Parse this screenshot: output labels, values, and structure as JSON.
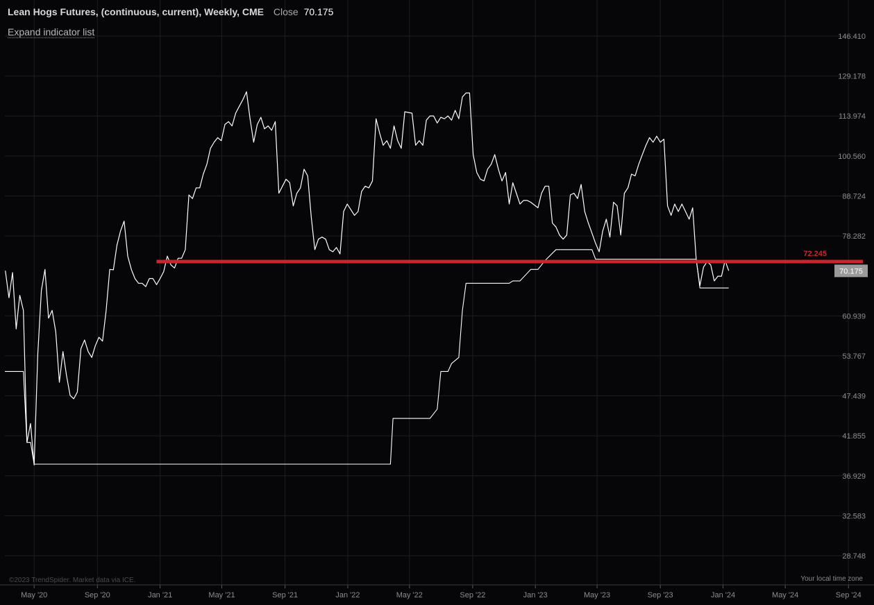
{
  "header": {
    "symbol": "Lean Hogs Futures, (continuous, current), Weekly, CME",
    "close_label": "Close",
    "close_value": "70.175"
  },
  "expand_label": "Expand indicator list",
  "copyright": "©2023 TrendSpider. Market data via ICE.",
  "timezone_label": "Your local time zone",
  "colors": {
    "background": "#060608",
    "price": "#ffffff",
    "level": "#c8252d",
    "grid": "#1d1d22"
  },
  "chart_data": {
    "type": "line",
    "log_scale": true,
    "grid": true,
    "y_ticks": [
      "146.410",
      "129.178",
      "113.974",
      "100.560",
      "88.724",
      "78.282",
      "60.939",
      "53.767",
      "47.439",
      "41.855",
      "36.929",
      "32.583",
      "28.748"
    ],
    "x_ticks": [
      {
        "label": "May '20",
        "date": "2020-05-01"
      },
      {
        "label": "Sep '20",
        "date": "2020-09-01"
      },
      {
        "label": "Jan '21",
        "date": "2021-01-01"
      },
      {
        "label": "May '21",
        "date": "2021-05-01"
      },
      {
        "label": "Sep '21",
        "date": "2021-09-01"
      },
      {
        "label": "Jan '22",
        "date": "2022-01-01"
      },
      {
        "label": "May '22",
        "date": "2022-05-01"
      },
      {
        "label": "Sep '22",
        "date": "2022-09-01"
      },
      {
        "label": "Jan '23",
        "date": "2023-01-01"
      },
      {
        "label": "May '23",
        "date": "2023-05-01"
      },
      {
        "label": "Sep '23",
        "date": "2023-09-01"
      },
      {
        "label": "Jan '24",
        "date": "2024-01-01"
      },
      {
        "label": "May '24",
        "date": "2024-05-01"
      },
      {
        "label": "Sep '24",
        "date": "2024-09-01"
      }
    ],
    "ylim": [
      26.5,
      160
    ],
    "xlim": [
      "2020-03-05",
      "2024-09-25"
    ],
    "series": [
      {
        "style": "price",
        "points": [
          [
            "2020-03-06",
            70.2
          ],
          [
            "2020-03-13",
            64.5
          ],
          [
            "2020-03-20",
            69.8
          ],
          [
            "2020-03-27",
            58.5
          ],
          [
            "2020-04-03",
            65.0
          ],
          [
            "2020-04-10",
            62.0
          ],
          [
            "2020-04-17",
            41.0
          ],
          [
            "2020-04-24",
            43.5
          ],
          [
            "2020-05-01",
            38.2
          ],
          [
            "2020-05-08",
            54.0
          ],
          [
            "2020-05-15",
            66.0
          ],
          [
            "2020-05-22",
            70.5
          ],
          [
            "2020-05-29",
            60.5
          ],
          [
            "2020-06-05",
            62.0
          ],
          [
            "2020-06-12",
            58.0
          ],
          [
            "2020-06-19",
            49.5
          ],
          [
            "2020-06-26",
            54.5
          ],
          [
            "2020-07-03",
            50.5
          ],
          [
            "2020-07-10",
            47.5
          ],
          [
            "2020-07-17",
            47.0
          ],
          [
            "2020-07-24",
            48.0
          ],
          [
            "2020-07-31",
            55.0
          ],
          [
            "2020-08-07",
            56.5
          ],
          [
            "2020-08-14",
            54.5
          ],
          [
            "2020-08-21",
            53.5
          ],
          [
            "2020-08-28",
            55.5
          ],
          [
            "2020-09-04",
            57.0
          ],
          [
            "2020-09-11",
            56.3
          ],
          [
            "2020-09-18",
            62.0
          ],
          [
            "2020-09-25",
            70.5
          ],
          [
            "2020-10-02",
            70.4
          ],
          [
            "2020-10-09",
            76.0
          ],
          [
            "2020-10-16",
            79.5
          ],
          [
            "2020-10-23",
            82.0
          ],
          [
            "2020-10-30",
            73.5
          ],
          [
            "2020-11-06",
            70.5
          ],
          [
            "2020-11-13",
            68.5
          ],
          [
            "2020-11-20",
            67.5
          ],
          [
            "2020-11-27",
            67.5
          ],
          [
            "2020-12-04",
            66.8
          ],
          [
            "2020-12-11",
            68.5
          ],
          [
            "2020-12-18",
            68.5
          ],
          [
            "2020-12-25",
            67.2
          ],
          [
            "2021-01-01",
            68.5
          ],
          [
            "2021-01-08",
            70.0
          ],
          [
            "2021-01-15",
            73.5
          ],
          [
            "2021-01-22",
            71.5
          ],
          [
            "2021-01-29",
            70.8
          ],
          [
            "2021-02-05",
            73.0
          ],
          [
            "2021-02-12",
            73.0
          ],
          [
            "2021-02-19",
            75.0
          ],
          [
            "2021-02-26",
            89.0
          ],
          [
            "2021-03-05",
            88.0
          ],
          [
            "2021-03-12",
            91.0
          ],
          [
            "2021-03-19",
            91.0
          ],
          [
            "2021-03-26",
            95.0
          ],
          [
            "2021-04-02",
            98.0
          ],
          [
            "2021-04-09",
            103.0
          ],
          [
            "2021-04-16",
            105.0
          ],
          [
            "2021-04-23",
            106.5
          ],
          [
            "2021-04-30",
            105.5
          ],
          [
            "2021-05-07",
            111.0
          ],
          [
            "2021-05-14",
            112.0
          ],
          [
            "2021-05-21",
            110.5
          ],
          [
            "2021-05-28",
            115.0
          ],
          [
            "2021-06-04",
            117.5
          ],
          [
            "2021-06-11",
            120.0
          ],
          [
            "2021-06-18",
            123.0
          ],
          [
            "2021-06-25",
            113.0
          ],
          [
            "2021-07-02",
            105.0
          ],
          [
            "2021-07-09",
            111.0
          ],
          [
            "2021-07-16",
            113.5
          ],
          [
            "2021-07-23",
            109.5
          ],
          [
            "2021-07-30",
            110.5
          ],
          [
            "2021-08-06",
            109.0
          ],
          [
            "2021-08-13",
            112.0
          ],
          [
            "2021-08-20",
            89.5
          ],
          [
            "2021-08-27",
            91.5
          ],
          [
            "2021-09-03",
            93.5
          ],
          [
            "2021-09-10",
            92.5
          ],
          [
            "2021-09-17",
            86.0
          ],
          [
            "2021-09-24",
            89.5
          ],
          [
            "2021-10-01",
            91.0
          ],
          [
            "2021-10-08",
            96.5
          ],
          [
            "2021-10-15",
            94.5
          ],
          [
            "2021-10-22",
            83.0
          ],
          [
            "2021-10-29",
            75.0
          ],
          [
            "2021-11-05",
            77.5
          ],
          [
            "2021-11-12",
            78.0
          ],
          [
            "2021-11-19",
            77.5
          ],
          [
            "2021-11-26",
            75.0
          ],
          [
            "2021-12-03",
            74.5
          ],
          [
            "2021-12-10",
            75.5
          ],
          [
            "2021-12-17",
            74.0
          ],
          [
            "2021-12-24",
            84.5
          ],
          [
            "2021-12-31",
            86.5
          ],
          [
            "2022-01-07",
            85.0
          ],
          [
            "2022-01-14",
            83.5
          ],
          [
            "2022-01-21",
            84.5
          ],
          [
            "2022-01-28",
            90.0
          ],
          [
            "2022-02-04",
            91.5
          ],
          [
            "2022-02-11",
            91.0
          ],
          [
            "2022-02-18",
            93.0
          ],
          [
            "2022-02-25",
            113.0
          ],
          [
            "2022-03-04",
            108.0
          ],
          [
            "2022-03-11",
            104.0
          ],
          [
            "2022-03-18",
            105.5
          ],
          [
            "2022-03-25",
            103.0
          ],
          [
            "2022-04-01",
            110.5
          ],
          [
            "2022-04-08",
            105.5
          ],
          [
            "2022-04-15",
            103.0
          ],
          [
            "2022-04-22",
            115.5
          ],
          [
            "2022-05-06",
            115.0
          ],
          [
            "2022-05-13",
            104.0
          ],
          [
            "2022-05-20",
            105.5
          ],
          [
            "2022-05-27",
            104.0
          ],
          [
            "2022-06-03",
            112.5
          ],
          [
            "2022-06-10",
            114.0
          ],
          [
            "2022-06-17",
            114.0
          ],
          [
            "2022-06-24",
            111.5
          ],
          [
            "2022-07-01",
            113.5
          ],
          [
            "2022-07-08",
            113.0
          ],
          [
            "2022-07-15",
            114.0
          ],
          [
            "2022-07-22",
            112.5
          ],
          [
            "2022-07-29",
            116.0
          ],
          [
            "2022-08-05",
            113.0
          ],
          [
            "2022-08-12",
            121.0
          ],
          [
            "2022-08-19",
            122.5
          ],
          [
            "2022-08-26",
            122.5
          ],
          [
            "2022-09-02",
            101.0
          ],
          [
            "2022-09-09",
            95.5
          ],
          [
            "2022-09-16",
            93.5
          ],
          [
            "2022-09-23",
            93.0
          ],
          [
            "2022-09-30",
            96.5
          ],
          [
            "2022-10-07",
            98.0
          ],
          [
            "2022-10-14",
            101.0
          ],
          [
            "2022-10-21",
            96.5
          ],
          [
            "2022-10-28",
            93.0
          ],
          [
            "2022-11-04",
            95.5
          ],
          [
            "2022-11-11",
            86.5
          ],
          [
            "2022-11-18",
            92.5
          ],
          [
            "2022-11-25",
            89.5
          ],
          [
            "2022-12-02",
            86.5
          ],
          [
            "2022-12-09",
            87.5
          ],
          [
            "2022-12-16",
            87.5
          ],
          [
            "2022-12-23",
            87.0
          ],
          [
            "2023-01-06",
            85.5
          ],
          [
            "2023-01-13",
            89.5
          ],
          [
            "2023-01-20",
            91.5
          ],
          [
            "2023-01-27",
            91.5
          ],
          [
            "2023-02-03",
            81.5
          ],
          [
            "2023-02-10",
            80.5
          ],
          [
            "2023-02-17",
            78.5
          ],
          [
            "2023-02-24",
            77.5
          ],
          [
            "2023-03-03",
            78.5
          ],
          [
            "2023-03-10",
            89.0
          ],
          [
            "2023-03-17",
            89.5
          ],
          [
            "2023-03-24",
            88.0
          ],
          [
            "2023-03-31",
            92.0
          ],
          [
            "2023-04-07",
            84.5
          ],
          [
            "2023-04-14",
            81.5
          ],
          [
            "2023-04-21",
            79.0
          ],
          [
            "2023-04-28",
            76.5
          ],
          [
            "2023-05-05",
            74.5
          ],
          [
            "2023-05-12",
            79.5
          ],
          [
            "2023-05-19",
            82.5
          ],
          [
            "2023-05-26",
            78.0
          ],
          [
            "2023-06-02",
            87.0
          ],
          [
            "2023-06-09",
            86.0
          ],
          [
            "2023-06-16",
            78.5
          ],
          [
            "2023-06-23",
            89.5
          ],
          [
            "2023-06-30",
            91.0
          ],
          [
            "2023-07-07",
            95.0
          ],
          [
            "2023-07-14",
            94.5
          ],
          [
            "2023-07-21",
            98.0
          ],
          [
            "2023-07-28",
            101.0
          ],
          [
            "2023-08-04",
            104.0
          ],
          [
            "2023-08-11",
            106.5
          ],
          [
            "2023-08-18",
            105.0
          ],
          [
            "2023-08-25",
            107.0
          ],
          [
            "2023-09-01",
            105.0
          ],
          [
            "2023-09-08",
            106.0
          ],
          [
            "2023-09-15",
            86.0
          ],
          [
            "2023-09-22",
            83.5
          ],
          [
            "2023-09-29",
            86.5
          ],
          [
            "2023-10-06",
            84.5
          ],
          [
            "2023-10-13",
            86.5
          ],
          [
            "2023-10-20",
            84.5
          ],
          [
            "2023-10-27",
            82.5
          ],
          [
            "2023-11-03",
            85.5
          ],
          [
            "2023-11-10",
            72.5
          ],
          [
            "2023-11-17",
            67.0
          ],
          [
            "2023-11-24",
            71.0
          ],
          [
            "2023-12-01",
            72.2
          ],
          [
            "2023-12-08",
            71.5
          ],
          [
            "2023-12-15",
            68.0
          ],
          [
            "2023-12-22",
            69.0
          ],
          [
            "2023-12-29",
            69.0
          ],
          [
            "2024-01-05",
            72.5
          ],
          [
            "2024-01-12",
            70.2
          ]
        ]
      },
      {
        "style": "trailing-stop",
        "points": [
          [
            "2020-03-05",
            51.2
          ],
          [
            "2020-04-10",
            51.2
          ],
          [
            "2020-04-17",
            41.0
          ],
          [
            "2020-04-24",
            41.0
          ],
          [
            "2020-05-01",
            38.3
          ],
          [
            "2022-03-25",
            38.3
          ],
          [
            "2022-03-30",
            44.2
          ],
          [
            "2022-06-10",
            44.2
          ],
          [
            "2022-06-24",
            45.5
          ],
          [
            "2022-07-01",
            51.2
          ],
          [
            "2022-07-15",
            51.2
          ],
          [
            "2022-07-22",
            52.5
          ],
          [
            "2022-08-05",
            53.5
          ],
          [
            "2022-08-12",
            62.0
          ],
          [
            "2022-08-19",
            67.5
          ],
          [
            "2022-11-11",
            67.5
          ],
          [
            "2022-11-18",
            68.0
          ],
          [
            "2022-12-02",
            68.0
          ],
          [
            "2022-12-23",
            70.5
          ],
          [
            "2023-01-06",
            70.5
          ],
          [
            "2023-01-20",
            72.5
          ],
          [
            "2023-02-10",
            75.0
          ],
          [
            "2023-04-21",
            75.0
          ],
          [
            "2023-04-28",
            72.8
          ],
          [
            "2023-11-10",
            72.8
          ],
          [
            "2023-11-17",
            66.5
          ],
          [
            "2024-01-12",
            66.5
          ]
        ]
      }
    ],
    "level": {
      "value": 72.245,
      "label": "72.245",
      "start_date": "2020-12-25"
    },
    "last_price": {
      "value": 70.175,
      "label": "70.175"
    }
  }
}
